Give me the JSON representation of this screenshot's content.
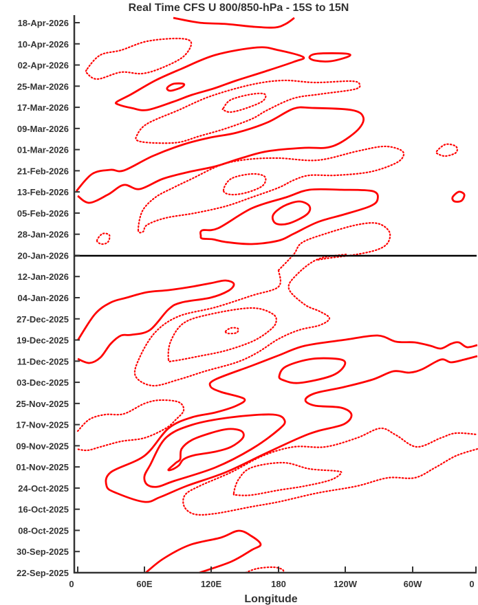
{
  "chart_data": {
    "type": "contour",
    "title": "Real Time CFS U 800/850-hPa - 15S to 15N",
    "xlabel": "Longitude",
    "ylabel": "",
    "x_ticks": [
      "0",
      "60E",
      "120E",
      "180",
      "120W",
      "60W",
      "0"
    ],
    "xlim": [
      0,
      360
    ],
    "y_ticks": [
      "22-Sep-2025",
      "30-Sep-2025",
      "08-Oct-2025",
      "16-Oct-2025",
      "24-Oct-2025",
      "01-Nov-2025",
      "09-Nov-2025",
      "17-Nov-2025",
      "25-Nov-2025",
      "03-Dec-2025",
      "11-Dec-2025",
      "19-Dec-2025",
      "27-Dec-2025",
      "04-Jan-2026",
      "12-Jan-2026",
      "20-Jan-2026",
      "28-Jan-2026",
      "05-Feb-2026",
      "13-Feb-2026",
      "21-Feb-2026",
      "01-Mar-2026",
      "09-Mar-2026",
      "17-Mar-2026",
      "25-Mar-2026",
      "02-Apr-2026",
      "10-Apr-2026",
      "18-Apr-2026"
    ],
    "ylim": [
      "22-Sep-2025",
      "18-Apr-2026"
    ],
    "reference_line": "20-Jan-2026",
    "contour_styles": {
      "positive": "solid",
      "negative": "dotted"
    },
    "grid": false,
    "legend": "none"
  },
  "colors": {
    "contour": "#ff0000",
    "axis": "#333333",
    "reference_line": "#000000"
  }
}
